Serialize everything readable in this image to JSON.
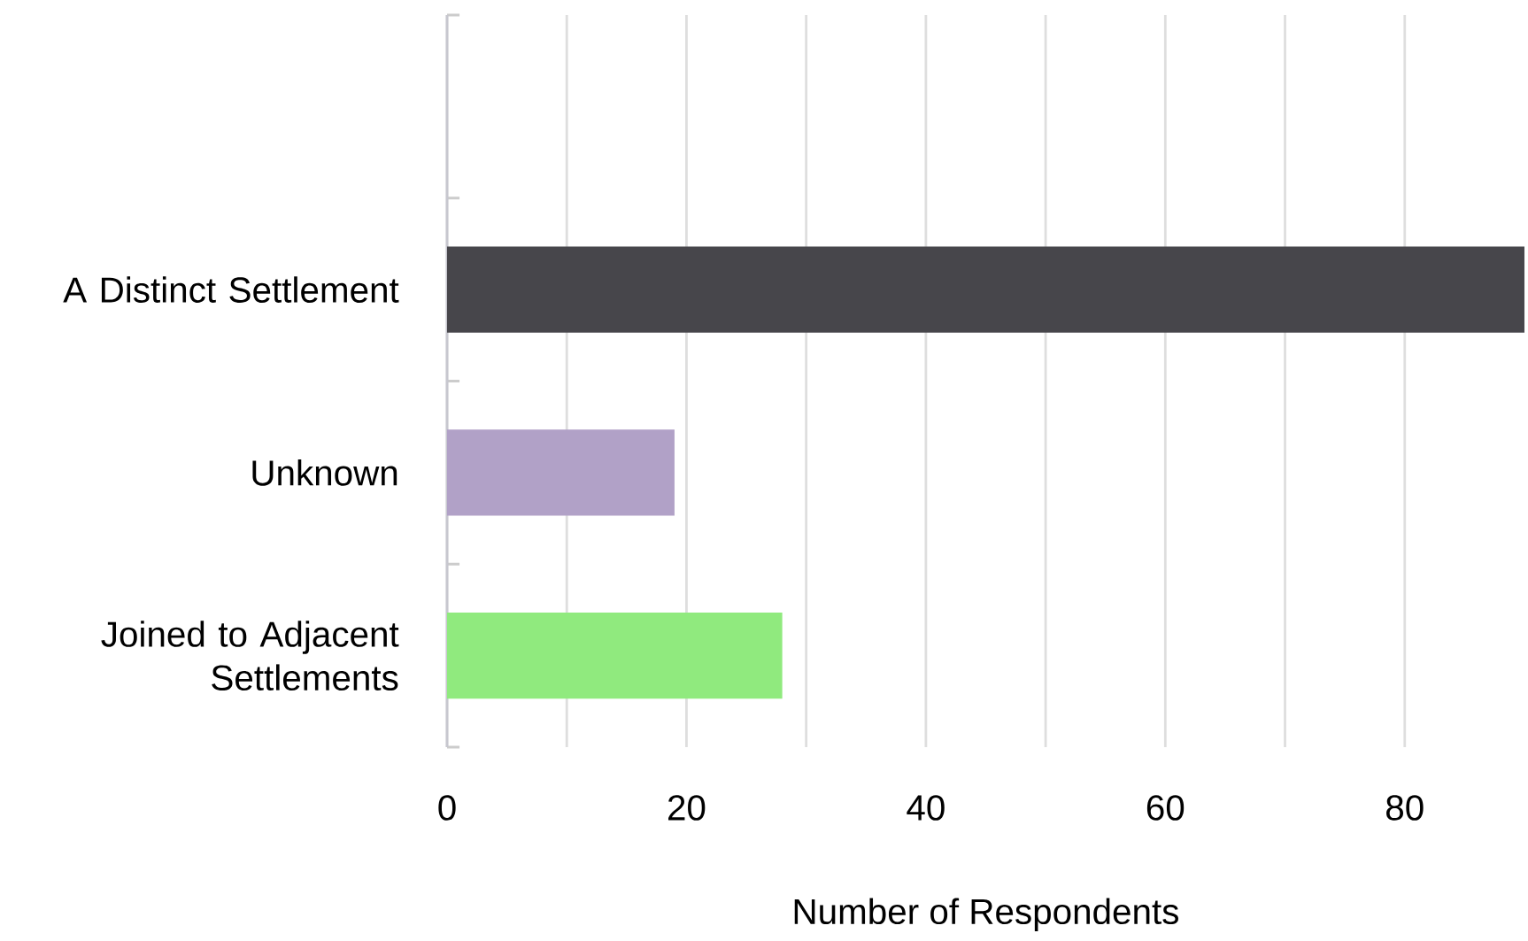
{
  "chart_data": {
    "type": "bar",
    "orientation": "horizontal",
    "xlabel": "Number of Respondents",
    "categories": [
      null,
      "A Distinct Settlement",
      "Unknown",
      "Joined to Adjacent Settlements"
    ],
    "values": [
      null,
      90,
      19,
      28
    ],
    "colors": [
      "#47464b",
      "#47464b",
      "#b1a1c7",
      "#90ea7e"
    ],
    "xlim": [
      0,
      90
    ],
    "xticks": [
      0,
      {
        "value": 10,
        "label": null
      },
      20,
      {
        "value": 30,
        "label": null
      },
      40,
      {
        "value": 50,
        "label": null
      },
      60,
      {
        "value": 70,
        "label": null
      },
      80
    ],
    "grid": "x"
  }
}
